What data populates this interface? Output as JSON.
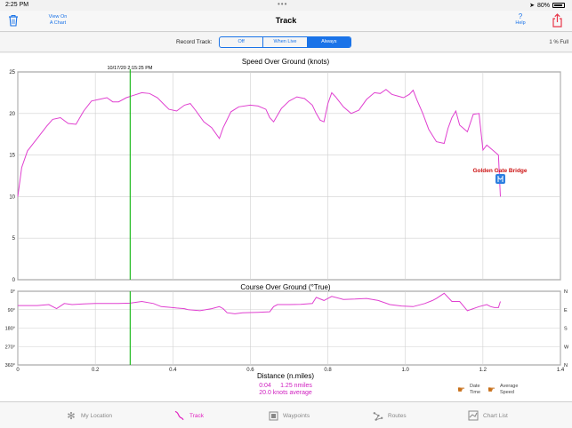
{
  "status": {
    "time": "2:25 PM",
    "battery": "80%"
  },
  "nav": {
    "title": "Track",
    "view_chart_line1": "View On",
    "view_chart_line2": "A Chart",
    "help_glyph": "?",
    "help_label": "Help",
    "trash_icon": "trash-icon",
    "share_icon": "share-icon"
  },
  "record": {
    "label": "Record Track:",
    "options": [
      "Off",
      "When Live",
      "Always"
    ],
    "selected": "Always",
    "full_text": "1 % Full"
  },
  "chart_data": [
    {
      "type": "line",
      "title": "Speed Over Ground (knots)",
      "xlim": [
        0,
        1.4
      ],
      "ylim": [
        0,
        25
      ],
      "xticks": [
        "0",
        "0.2",
        "0.4",
        "0.6",
        "0.8",
        "1.0",
        "1.2",
        "1.4"
      ],
      "yticks": [
        "0",
        "5",
        "10",
        "15",
        "20",
        "25"
      ],
      "cursor": {
        "x": 0.29,
        "label": "10/17/20 2:15:25 PM"
      },
      "annotation": {
        "label": "Golden Gate Bridge",
        "x": 1.245,
        "y": 12
      },
      "color": "#e040d0",
      "x": [
        0,
        0.01,
        0.025,
        0.05,
        0.075,
        0.09,
        0.11,
        0.13,
        0.15,
        0.17,
        0.19,
        0.21,
        0.23,
        0.245,
        0.26,
        0.28,
        0.3,
        0.32,
        0.34,
        0.36,
        0.375,
        0.39,
        0.41,
        0.43,
        0.445,
        0.46,
        0.48,
        0.5,
        0.52,
        0.53,
        0.55,
        0.57,
        0.6,
        0.62,
        0.64,
        0.65,
        0.66,
        0.68,
        0.7,
        0.72,
        0.74,
        0.76,
        0.77,
        0.78,
        0.79,
        0.8,
        0.81,
        0.82,
        0.84,
        0.86,
        0.88,
        0.9,
        0.92,
        0.935,
        0.95,
        0.965,
        0.98,
        0.995,
        1.01,
        1.02,
        1.03,
        1.045,
        1.06,
        1.08,
        1.1,
        1.11,
        1.12,
        1.13,
        1.14,
        1.16,
        1.175,
        1.19,
        1.2,
        1.21,
        1.225,
        1.24,
        1.245
      ],
      "y": [
        10,
        13.5,
        15.5,
        17,
        18.5,
        19.3,
        19.5,
        18.8,
        18.7,
        20.3,
        21.5,
        21.7,
        21.9,
        21.4,
        21.4,
        21.9,
        22.2,
        22.5,
        22.4,
        21.9,
        21.2,
        20.5,
        20.3,
        21,
        21.2,
        20.3,
        19,
        18.3,
        17,
        18.3,
        20.2,
        20.8,
        21,
        20.9,
        20.5,
        19.5,
        19,
        20.6,
        21.5,
        22,
        21.8,
        21,
        20,
        19.2,
        19,
        21.2,
        22.5,
        22,
        20.8,
        20,
        20.4,
        21.7,
        22.5,
        22.4,
        22.9,
        22.3,
        22.1,
        21.9,
        22.3,
        22.8,
        21.6,
        20,
        18.1,
        16.6,
        16.4,
        18.2,
        19.5,
        20.3,
        18.6,
        17.8,
        19.9,
        20,
        15.6,
        16.2,
        15.6,
        15,
        10
      ]
    },
    {
      "type": "line",
      "title": "Course Over Ground (°True)",
      "xlim": [
        0,
        1.4
      ],
      "ylim": [
        0,
        360
      ],
      "xlabel": "Distance (n.miles)",
      "xticks": [
        "0",
        "0.2",
        "0.4",
        "0.6",
        "0.8",
        "1.0",
        "1.2",
        "1.4"
      ],
      "yticks": [
        "0°",
        "90°",
        "180°",
        "270°",
        "360°"
      ],
      "right_ticks": [
        "N",
        "E",
        "S",
        "W",
        "N"
      ],
      "color": "#e040d0",
      "x": [
        0,
        0.05,
        0.08,
        0.1,
        0.12,
        0.14,
        0.17,
        0.2,
        0.23,
        0.26,
        0.29,
        0.32,
        0.35,
        0.37,
        0.39,
        0.41,
        0.43,
        0.44,
        0.47,
        0.5,
        0.52,
        0.53,
        0.54,
        0.56,
        0.58,
        0.62,
        0.65,
        0.66,
        0.67,
        0.7,
        0.73,
        0.76,
        0.77,
        0.79,
        0.81,
        0.84,
        0.87,
        0.9,
        0.93,
        0.96,
        0.99,
        1.02,
        1.05,
        1.07,
        1.08,
        1.1,
        1.12,
        1.14,
        1.16,
        1.19,
        1.21,
        1.22,
        1.23,
        1.24,
        1.245
      ],
      "y": [
        70,
        70,
        65,
        85,
        60,
        65,
        62,
        60,
        60,
        60,
        58,
        50,
        60,
        75,
        78,
        82,
        85,
        90,
        95,
        85,
        75,
        85,
        105,
        110,
        105,
        103,
        100,
        75,
        65,
        65,
        64,
        60,
        30,
        45,
        25,
        40,
        38,
        35,
        45,
        65,
        72,
        75,
        60,
        45,
        35,
        10,
        50,
        50,
        95,
        75,
        65,
        75,
        80,
        80,
        50
      ]
    }
  ],
  "footer": {
    "time_text": "0:04",
    "distance_text": "1.25 nmiles",
    "average_text": "20.0 knots average",
    "date_time_line1": "Date",
    "date_time_line2": "Time",
    "avg_speed_line1": "Average",
    "avg_speed_line2": "Speed"
  },
  "tabs": [
    {
      "label": "My Location",
      "icon": "location-gear-icon"
    },
    {
      "label": "Track",
      "icon": "track-icon"
    },
    {
      "label": "Waypoints",
      "icon": "waypoint-icon"
    },
    {
      "label": "Routes",
      "icon": "routes-icon"
    },
    {
      "label": "Chart List",
      "icon": "chart-list-icon"
    }
  ],
  "active_tab": "Track"
}
